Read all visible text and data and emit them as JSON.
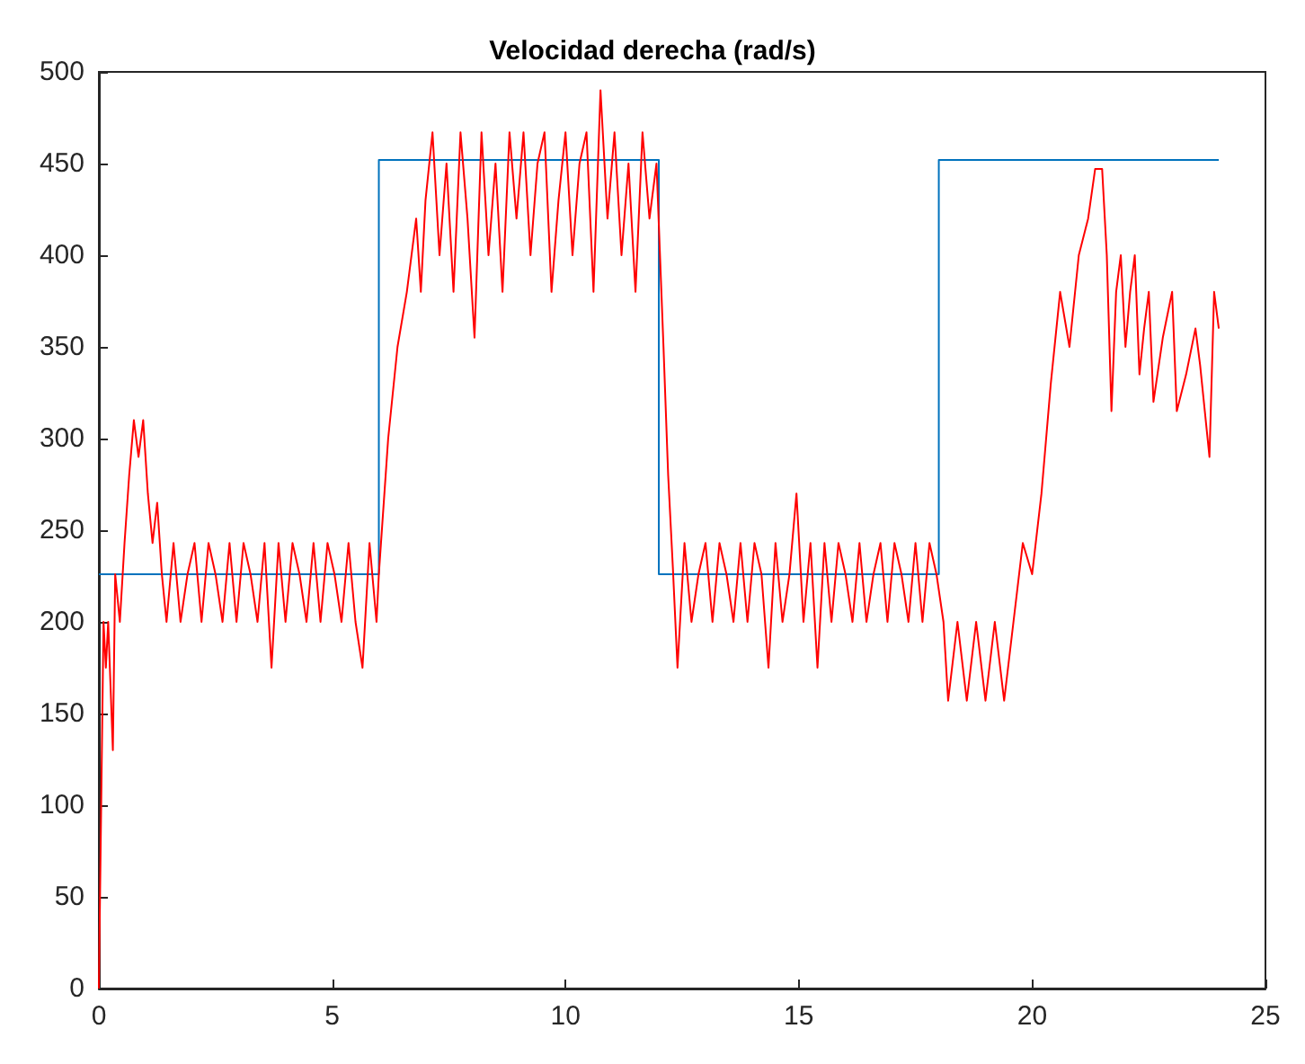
{
  "chart_data": {
    "type": "line",
    "title": "Velocidad derecha (rad/s)",
    "xlim": [
      0,
      25
    ],
    "xticks": [
      0,
      5,
      10,
      15,
      20,
      25
    ],
    "ylim": [
      0,
      500
    ],
    "yticks": [
      0,
      50,
      100,
      150,
      200,
      250,
      300,
      350,
      400,
      450,
      500
    ],
    "grid": false,
    "marker": "none",
    "line_style": "solid",
    "series": [
      {
        "color": "#0072bd",
        "x": [
          0,
          6,
          6,
          12,
          12,
          18,
          18,
          24
        ],
        "values": [
          226,
          226,
          452,
          452,
          226,
          226,
          452,
          452
        ]
      },
      {
        "color": "#ff0000",
        "x": [
          0,
          0.05,
          0.1,
          0.15,
          0.2,
          0.3,
          0.35,
          0.45,
          0.55,
          0.65,
          0.75,
          0.85,
          0.95,
          1.05,
          1.15,
          1.25,
          1.35,
          1.45,
          1.6,
          1.75,
          1.9,
          2.05,
          2.2,
          2.35,
          2.5,
          2.65,
          2.8,
          2.95,
          3.1,
          3.25,
          3.4,
          3.55,
          3.7,
          3.85,
          4,
          4.15,
          4.3,
          4.45,
          4.6,
          4.75,
          4.9,
          5.05,
          5.2,
          5.35,
          5.5,
          5.65,
          5.8,
          5.95,
          6,
          6.2,
          6.4,
          6.6,
          6.8,
          6.9,
          7,
          7.15,
          7.3,
          7.45,
          7.6,
          7.75,
          7.9,
          8.05,
          8.2,
          8.35,
          8.5,
          8.65,
          8.8,
          8.95,
          9.1,
          9.25,
          9.4,
          9.55,
          9.7,
          9.85,
          10,
          10.15,
          10.3,
          10.45,
          10.6,
          10.75,
          10.9,
          11.05,
          11.2,
          11.35,
          11.5,
          11.65,
          11.8,
          11.95,
          12.1,
          12.2,
          12.3,
          12.4,
          12.55,
          12.7,
          12.85,
          13,
          13.15,
          13.3,
          13.45,
          13.6,
          13.75,
          13.9,
          14.05,
          14.2,
          14.35,
          14.5,
          14.65,
          14.8,
          14.95,
          15.1,
          15.25,
          15.4,
          15.55,
          15.7,
          15.85,
          16,
          16.15,
          16.3,
          16.45,
          16.6,
          16.75,
          16.9,
          17.05,
          17.2,
          17.35,
          17.5,
          17.65,
          17.8,
          17.95,
          18.1,
          18.2,
          18.4,
          18.6,
          18.8,
          19,
          19.2,
          19.4,
          19.6,
          19.8,
          20,
          20.2,
          20.4,
          20.6,
          20.8,
          21,
          21.2,
          21.35,
          21.5,
          21.6,
          21.7,
          21.8,
          21.9,
          22,
          22.1,
          22.2,
          22.3,
          22.4,
          22.5,
          22.6,
          22.8,
          23,
          23.1,
          23.3,
          23.5,
          23.6,
          23.7,
          23.8,
          23.9,
          24
        ],
        "values": [
          0,
          100,
          200,
          175,
          200,
          130,
          226,
          200,
          243,
          280,
          310,
          290,
          310,
          270,
          243,
          265,
          226,
          200,
          243,
          200,
          226,
          243,
          200,
          243,
          226,
          200,
          243,
          200,
          243,
          226,
          200,
          243,
          175,
          243,
          200,
          243,
          226,
          200,
          243,
          200,
          243,
          226,
          200,
          243,
          200,
          175,
          243,
          200,
          226,
          300,
          350,
          380,
          420,
          380,
          430,
          467,
          400,
          450,
          380,
          467,
          420,
          355,
          467,
          400,
          450,
          380,
          467,
          420,
          467,
          400,
          450,
          467,
          380,
          430,
          467,
          400,
          450,
          467,
          380,
          490,
          420,
          467,
          400,
          450,
          380,
          467,
          420,
          450,
          350,
          280,
          230,
          175,
          243,
          200,
          226,
          243,
          200,
          243,
          226,
          200,
          243,
          200,
          243,
          226,
          175,
          243,
          200,
          226,
          270,
          200,
          243,
          175,
          243,
          200,
          243,
          226,
          200,
          243,
          200,
          226,
          243,
          200,
          243,
          226,
          200,
          243,
          200,
          243,
          226,
          200,
          157,
          200,
          157,
          200,
          157,
          200,
          157,
          200,
          243,
          226,
          270,
          330,
          380,
          350,
          400,
          420,
          447,
          447,
          400,
          315,
          380,
          400,
          350,
          380,
          400,
          335,
          360,
          380,
          320,
          355,
          380,
          315,
          335,
          360,
          340,
          315,
          290,
          380,
          360
        ]
      }
    ]
  }
}
